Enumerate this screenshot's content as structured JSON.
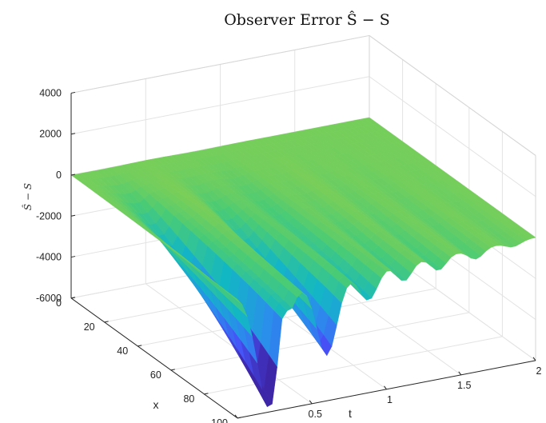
{
  "chart_data": {
    "type": "surface",
    "title": "Observer Error Ŝ − S",
    "xlabel": "t",
    "ylabel": "x",
    "zlabel": "Ŝ − S",
    "t_ticks": [
      "0",
      "0.5",
      "1",
      "1.5",
      "2"
    ],
    "x_ticks": [
      "0",
      "20",
      "40",
      "60",
      "80",
      "100"
    ],
    "z_ticks": [
      "-6000",
      "-4000",
      "-2000",
      "0",
      "2000",
      "4000"
    ],
    "t_lim": [
      0,
      2
    ],
    "x_lim": [
      0,
      100
    ],
    "z_lim": [
      -6000,
      4000
    ],
    "grid": true,
    "colormap": "parula",
    "features": [
      {
        "t": 0.2,
        "x": 100,
        "z": -5900
      },
      {
        "t": 0.28,
        "x": 95,
        "z": 800
      },
      {
        "t": 0.62,
        "x": 100,
        "z": -3900
      },
      {
        "t": 0.9,
        "x": 100,
        "z": -2300
      }
    ]
  }
}
